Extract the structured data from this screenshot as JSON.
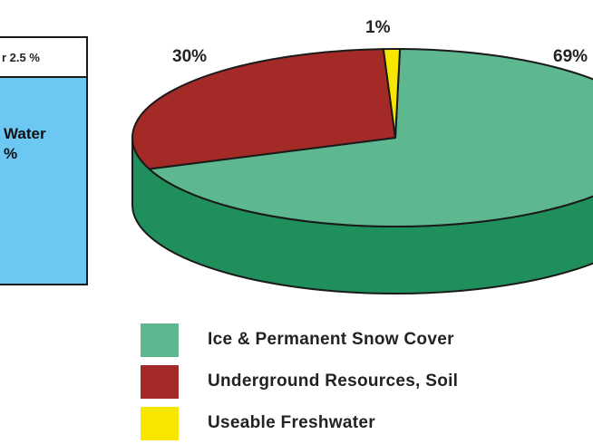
{
  "left_panel": {
    "top_text": "r 2.5 %",
    "water_text": "Water\n%"
  },
  "chart_data": {
    "type": "pie",
    "categories": [
      "Ice & Permanent Snow Cover",
      "Underground Resources, Soil",
      "Useable Freshwater"
    ],
    "values": [
      69,
      30,
      1
    ],
    "labels": [
      "69%",
      "30%",
      "1%"
    ],
    "colors": [
      "#5db78f",
      "#a32a26",
      "#f7e600"
    ],
    "side_color": "#1f8f5c",
    "legend_position": "bottom"
  },
  "legend": [
    {
      "label": "Ice & Permanent Snow Cover",
      "color": "#5db78f"
    },
    {
      "label": "Underground Resources, Soil",
      "color": "#a32a26"
    },
    {
      "label": "Useable Freshwater",
      "color": "#f7e600"
    }
  ]
}
